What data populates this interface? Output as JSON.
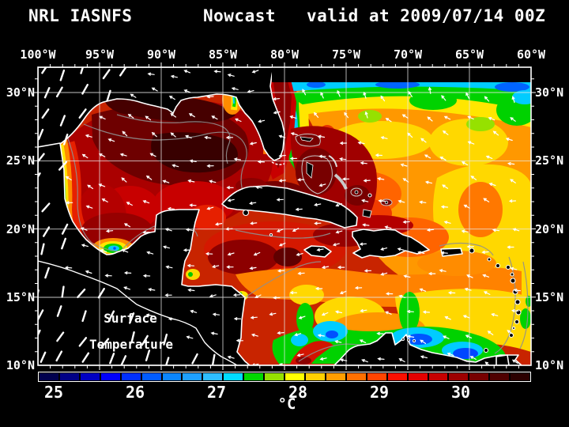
{
  "title": {
    "model": "NRL IASNFS",
    "product": "Nowcast",
    "valid": "valid at 2009/07/14 00Z"
  },
  "map": {
    "annotation_line1": "Surface",
    "annotation_line2": "Temperature",
    "lon_ticks": [
      "100°W",
      "95°W",
      "90°W",
      "85°W",
      "80°W",
      "75°W",
      "70°W",
      "65°W",
      "60°W"
    ],
    "lat_ticks": [
      "30°N",
      "25°N",
      "20°N",
      "15°N",
      "10°N"
    ],
    "grid_color": "#e8e8e8",
    "land_color": "#000000",
    "coastline_color": "#ffffff",
    "contour_color": "#8f8f8f",
    "wind_vector_color": "#ffffff"
  },
  "colorbar": {
    "unit": "°C",
    "tick_labels": [
      "25",
      "26",
      "27",
      "28",
      "29",
      "30"
    ],
    "cells_per_degree": 4,
    "cells": [
      "#00004e",
      "#000087",
      "#0000c3",
      "#0000fb",
      "#0030ff",
      "#005cff",
      "#0b86ff",
      "#1ea0ff",
      "#2ebeff",
      "#00dcff",
      "#00d800",
      "#96e100",
      "#ffff00",
      "#ffd000",
      "#ff9e00",
      "#ff7000",
      "#ff4400",
      "#fb0f00",
      "#e40000",
      "#c60000",
      "#9e0000",
      "#770000",
      "#4f0000",
      "#2b0000"
    ]
  },
  "chart_data": {
    "type": "heatmap",
    "title": "NRL IASNFS Nowcast valid at 2009/07/14 00Z",
    "field": "Surface Temperature",
    "unit": "°C",
    "colorbar_tick_values": [
      25,
      26,
      27,
      28,
      29,
      30
    ],
    "colorbar_approx_range": [
      24.75,
      30.75
    ],
    "lon_ticks_deg_w": [
      100,
      95,
      90,
      85,
      80,
      75,
      70,
      65,
      60
    ],
    "lat_ticks_deg_n": [
      30,
      25,
      20,
      15,
      10
    ],
    "grid": true,
    "notes": "SST map of Gulf of Mexico, Caribbean Sea and western North Atlantic with white wind vectors; warmest water (~30-31°C) in Gulf of Mexico, cooler (~25-27°C) upwelling along Venezuela coast and along 30°N Atlantic edge"
  }
}
